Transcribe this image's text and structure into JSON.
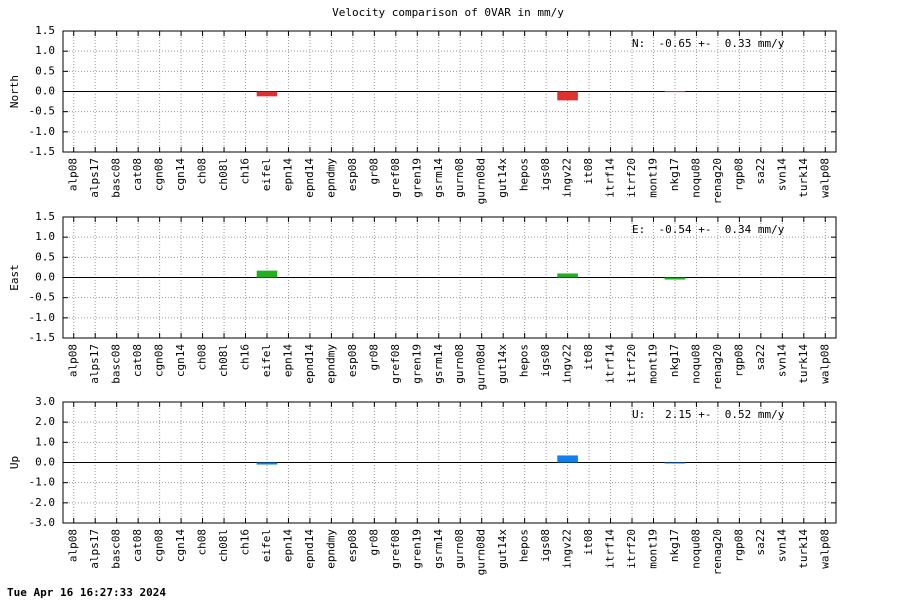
{
  "chart_data": [
    {
      "type": "bar",
      "title": "Velocity comparison of 0VAR in mm/y",
      "ylabel": "North",
      "annotation": "N:  -0.65 +-  0.33 mm/y",
      "color": "#e03030",
      "categories": [
        "alp08",
        "alps17",
        "basc08",
        "cat08",
        "cgn08",
        "cgn14",
        "ch08",
        "ch08l",
        "ch16",
        "eifel",
        "epn14",
        "epnd14",
        "epndmy",
        "esp08",
        "gr08",
        "gref08",
        "gren19",
        "gsrm14",
        "gurn08",
        "gurn08d",
        "gut14x",
        "hepos",
        "igs08",
        "ingv22",
        "it08",
        "itrf14",
        "itrf20",
        "mont19",
        "nkg17",
        "noqu08",
        "renag20",
        "rgp08",
        "sa22",
        "svn14",
        "turk14",
        "walp08"
      ],
      "values": [
        null,
        null,
        null,
        null,
        null,
        null,
        null,
        null,
        null,
        -0.12,
        null,
        null,
        null,
        null,
        null,
        null,
        null,
        null,
        null,
        null,
        null,
        null,
        null,
        -0.22,
        null,
        null,
        null,
        null,
        0.01,
        null,
        null,
        null,
        null,
        null,
        null,
        null
      ],
      "ylim": [
        -1.5,
        1.5
      ],
      "yticks": [
        -1.5,
        {
          "value": -1,
          "label": "-1.0"
        },
        -0.5,
        {
          "value": 0,
          "label": "0.0"
        },
        0.5,
        {
          "value": 1,
          "label": "1.0"
        },
        1.5
      ],
      "grid": true
    },
    {
      "type": "bar",
      "ylabel": "East",
      "annotation": "E:  -0.54 +-  0.34 mm/y",
      "color": "#20b020",
      "categories": [
        "alp08",
        "alps17",
        "basc08",
        "cat08",
        "cgn08",
        "cgn14",
        "ch08",
        "ch08l",
        "ch16",
        "eifel",
        "epn14",
        "epnd14",
        "epndmy",
        "esp08",
        "gr08",
        "gref08",
        "gren19",
        "gsrm14",
        "gurn08",
        "gurn08d",
        "gut14x",
        "hepos",
        "igs08",
        "ingv22",
        "it08",
        "itrf14",
        "itrf20",
        "mont19",
        "nkg17",
        "noqu08",
        "renag20",
        "rgp08",
        "sa22",
        "svn14",
        "turk14",
        "walp08"
      ],
      "values": [
        null,
        null,
        null,
        null,
        null,
        null,
        null,
        null,
        null,
        0.17,
        null,
        null,
        null,
        null,
        null,
        null,
        null,
        null,
        null,
        null,
        null,
        null,
        null,
        0.1,
        null,
        null,
        null,
        null,
        -0.05,
        null,
        null,
        null,
        null,
        null,
        null,
        null
      ],
      "ylim": [
        -1.5,
        1.5
      ],
      "yticks": [
        -1.5,
        {
          "value": -1,
          "label": "-1.0"
        },
        -0.5,
        {
          "value": 0,
          "label": "0.0"
        },
        0.5,
        {
          "value": 1,
          "label": "1.0"
        },
        1.5
      ],
      "grid": true
    },
    {
      "type": "bar",
      "ylabel": "Up",
      "annotation": "U:   2.15 +-  0.52 mm/y",
      "color": "#1080f0",
      "categories": [
        "alp08",
        "alps17",
        "basc08",
        "cat08",
        "cgn08",
        "cgn14",
        "ch08",
        "ch08l",
        "ch16",
        "eifel",
        "epn14",
        "epnd14",
        "epndmy",
        "esp08",
        "gr08",
        "gref08",
        "gren19",
        "gsrm14",
        "gurn08",
        "gurn08d",
        "gut14x",
        "hepos",
        "igs08",
        "ingv22",
        "it08",
        "itrf14",
        "itrf20",
        "mont19",
        "nkg17",
        "noqu08",
        "renag20",
        "rgp08",
        "sa22",
        "svn14",
        "turk14",
        "walp08"
      ],
      "values": [
        null,
        null,
        null,
        null,
        null,
        null,
        null,
        null,
        null,
        -0.1,
        null,
        null,
        null,
        null,
        null,
        null,
        null,
        null,
        null,
        null,
        null,
        null,
        null,
        0.35,
        null,
        null,
        null,
        null,
        -0.05,
        null,
        null,
        null,
        null,
        null,
        null,
        null
      ],
      "ylim": [
        -3,
        3
      ],
      "yticks": [
        {
          "value": -3,
          "label": "-3.0"
        },
        {
          "value": -2,
          "label": "-2.0"
        },
        {
          "value": -1,
          "label": "-1.0"
        },
        {
          "value": 0,
          "label": "0.0"
        },
        {
          "value": 1,
          "label": "1.0"
        },
        {
          "value": 2,
          "label": "2.0"
        },
        {
          "value": 3,
          "label": "3.0"
        }
      ],
      "grid": true
    }
  ],
  "timestamp": "Tue Apr 16 16:27:33 2024"
}
